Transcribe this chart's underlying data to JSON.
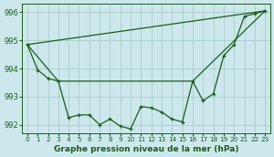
{
  "title": "Graphe pression niveau de la mer (hPa)",
  "background_color": "#cce8ec",
  "grid_color": "#aacccc",
  "line_color": "#1a5c1a",
  "marker_color": "#1a5c1a",
  "xlim": [
    -0.5,
    23.5
  ],
  "ylim": [
    991.7,
    996.3
  ],
  "yticks": [
    992,
    993,
    994,
    995,
    996
  ],
  "xticks": [
    0,
    1,
    2,
    3,
    4,
    5,
    6,
    7,
    8,
    9,
    10,
    11,
    12,
    13,
    14,
    15,
    16,
    17,
    18,
    19,
    20,
    21,
    22,
    23
  ],
  "series1_x": [
    0,
    1,
    2,
    3,
    4,
    5,
    6,
    7,
    8,
    9,
    10,
    11,
    12,
    13,
    14,
    15,
    16,
    17,
    18,
    19,
    20,
    21,
    22,
    23
  ],
  "series1_y": [
    994.85,
    993.95,
    993.65,
    993.55,
    992.25,
    992.35,
    992.35,
    992.0,
    992.2,
    991.95,
    991.85,
    992.65,
    992.6,
    992.45,
    992.2,
    992.1,
    993.55,
    992.85,
    993.1,
    994.45,
    994.85,
    995.85,
    995.95,
    996.05
  ],
  "series2_x": [
    0,
    23
  ],
  "series2_y": [
    994.85,
    996.05
  ],
  "series3_x": [
    3,
    16,
    23
  ],
  "series3_y": [
    993.55,
    993.55,
    996.05
  ],
  "series4_x": [
    0,
    3
  ],
  "series4_y": [
    994.85,
    993.55
  ],
  "xlabel_fontsize": 6.5,
  "ytick_fontsize": 6,
  "xtick_fontsize": 5.2
}
